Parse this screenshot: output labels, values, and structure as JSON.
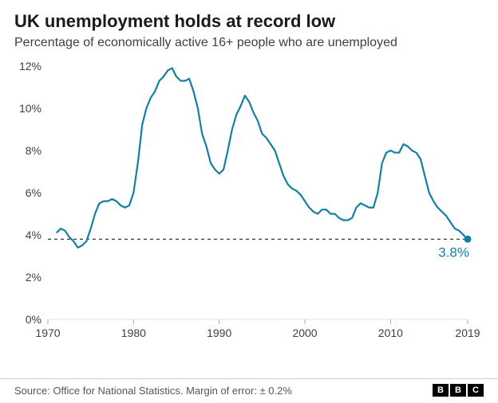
{
  "title": "UK unemployment holds at record low",
  "subtitle": "Percentage of economically active 16+ people who are unemployed",
  "source": "Source: Office for National Statistics. Margin of error: ± 0.2%",
  "logo": {
    "letters": [
      "B",
      "B",
      "C"
    ]
  },
  "chart": {
    "type": "line",
    "line_color": "#1380a1",
    "line_width": 2.2,
    "end_point_color": "#1380a1",
    "end_point_radius": 4.5,
    "end_label_text": "3.8%",
    "end_label_color": "#1380a1",
    "baseline_color": "#e6e6e6",
    "ref_line_dash": "4,4",
    "ref_line_color": "#222222",
    "ref_line_value": 3.8,
    "background_color": "#ffffff",
    "title_fontsize": 22,
    "subtitle_fontsize": 16,
    "axis_fontsize": 14,
    "x": {
      "min": 1970,
      "max": 2019,
      "ticks": [
        1970,
        1980,
        1990,
        2000,
        2010,
        2019
      ]
    },
    "y": {
      "min": 0,
      "max": 12,
      "ticks": [
        0,
        2,
        4,
        6,
        8,
        10,
        12
      ],
      "suffix": "%"
    },
    "series": [
      {
        "x": 1971.0,
        "y": 4.1
      },
      {
        "x": 1971.5,
        "y": 4.3
      },
      {
        "x": 1972.0,
        "y": 4.2
      },
      {
        "x": 1972.5,
        "y": 3.9
      },
      {
        "x": 1973.0,
        "y": 3.7
      },
      {
        "x": 1973.5,
        "y": 3.4
      },
      {
        "x": 1974.0,
        "y": 3.5
      },
      {
        "x": 1974.5,
        "y": 3.7
      },
      {
        "x": 1975.0,
        "y": 4.3
      },
      {
        "x": 1975.5,
        "y": 5.0
      },
      {
        "x": 1976.0,
        "y": 5.5
      },
      {
        "x": 1976.5,
        "y": 5.6
      },
      {
        "x": 1977.0,
        "y": 5.6
      },
      {
        "x": 1977.5,
        "y": 5.7
      },
      {
        "x": 1978.0,
        "y": 5.6
      },
      {
        "x": 1978.5,
        "y": 5.4
      },
      {
        "x": 1979.0,
        "y": 5.3
      },
      {
        "x": 1979.5,
        "y": 5.4
      },
      {
        "x": 1980.0,
        "y": 6.0
      },
      {
        "x": 1980.5,
        "y": 7.4
      },
      {
        "x": 1981.0,
        "y": 9.2
      },
      {
        "x": 1981.5,
        "y": 10.0
      },
      {
        "x": 1982.0,
        "y": 10.5
      },
      {
        "x": 1982.5,
        "y": 10.8
      },
      {
        "x": 1983.0,
        "y": 11.3
      },
      {
        "x": 1983.5,
        "y": 11.5
      },
      {
        "x": 1984.0,
        "y": 11.8
      },
      {
        "x": 1984.5,
        "y": 11.9
      },
      {
        "x": 1985.0,
        "y": 11.5
      },
      {
        "x": 1985.5,
        "y": 11.3
      },
      {
        "x": 1986.0,
        "y": 11.3
      },
      {
        "x": 1986.5,
        "y": 11.4
      },
      {
        "x": 1987.0,
        "y": 10.8
      },
      {
        "x": 1987.5,
        "y": 10.0
      },
      {
        "x": 1988.0,
        "y": 8.8
      },
      {
        "x": 1988.5,
        "y": 8.2
      },
      {
        "x": 1989.0,
        "y": 7.4
      },
      {
        "x": 1989.5,
        "y": 7.1
      },
      {
        "x": 1990.0,
        "y": 6.9
      },
      {
        "x": 1990.5,
        "y": 7.1
      },
      {
        "x": 1991.0,
        "y": 8.0
      },
      {
        "x": 1991.5,
        "y": 9.0
      },
      {
        "x": 1992.0,
        "y": 9.7
      },
      {
        "x": 1992.5,
        "y": 10.1
      },
      {
        "x": 1993.0,
        "y": 10.6
      },
      {
        "x": 1993.5,
        "y": 10.3
      },
      {
        "x": 1994.0,
        "y": 9.8
      },
      {
        "x": 1994.5,
        "y": 9.4
      },
      {
        "x": 1995.0,
        "y": 8.8
      },
      {
        "x": 1995.5,
        "y": 8.6
      },
      {
        "x": 1996.0,
        "y": 8.3
      },
      {
        "x": 1996.5,
        "y": 8.0
      },
      {
        "x": 1997.0,
        "y": 7.4
      },
      {
        "x": 1997.5,
        "y": 6.8
      },
      {
        "x": 1998.0,
        "y": 6.4
      },
      {
        "x": 1998.5,
        "y": 6.2
      },
      {
        "x": 1999.0,
        "y": 6.1
      },
      {
        "x": 1999.5,
        "y": 5.9
      },
      {
        "x": 2000.0,
        "y": 5.6
      },
      {
        "x": 2000.5,
        "y": 5.3
      },
      {
        "x": 2001.0,
        "y": 5.1
      },
      {
        "x": 2001.5,
        "y": 5.0
      },
      {
        "x": 2002.0,
        "y": 5.2
      },
      {
        "x": 2002.5,
        "y": 5.2
      },
      {
        "x": 2003.0,
        "y": 5.0
      },
      {
        "x": 2003.5,
        "y": 5.0
      },
      {
        "x": 2004.0,
        "y": 4.8
      },
      {
        "x": 2004.5,
        "y": 4.7
      },
      {
        "x": 2005.0,
        "y": 4.7
      },
      {
        "x": 2005.5,
        "y": 4.8
      },
      {
        "x": 2006.0,
        "y": 5.3
      },
      {
        "x": 2006.5,
        "y": 5.5
      },
      {
        "x": 2007.0,
        "y": 5.4
      },
      {
        "x": 2007.5,
        "y": 5.3
      },
      {
        "x": 2008.0,
        "y": 5.3
      },
      {
        "x": 2008.5,
        "y": 6.0
      },
      {
        "x": 2009.0,
        "y": 7.4
      },
      {
        "x": 2009.5,
        "y": 7.9
      },
      {
        "x": 2010.0,
        "y": 8.0
      },
      {
        "x": 2010.5,
        "y": 7.9
      },
      {
        "x": 2011.0,
        "y": 7.9
      },
      {
        "x": 2011.5,
        "y": 8.3
      },
      {
        "x": 2012.0,
        "y": 8.2
      },
      {
        "x": 2012.5,
        "y": 8.0
      },
      {
        "x": 2013.0,
        "y": 7.9
      },
      {
        "x": 2013.5,
        "y": 7.6
      },
      {
        "x": 2014.0,
        "y": 6.8
      },
      {
        "x": 2014.5,
        "y": 6.0
      },
      {
        "x": 2015.0,
        "y": 5.6
      },
      {
        "x": 2015.5,
        "y": 5.3
      },
      {
        "x": 2016.0,
        "y": 5.1
      },
      {
        "x": 2016.5,
        "y": 4.9
      },
      {
        "x": 2017.0,
        "y": 4.6
      },
      {
        "x": 2017.5,
        "y": 4.3
      },
      {
        "x": 2018.0,
        "y": 4.2
      },
      {
        "x": 2018.5,
        "y": 4.0
      },
      {
        "x": 2019.0,
        "y": 3.8
      }
    ]
  }
}
